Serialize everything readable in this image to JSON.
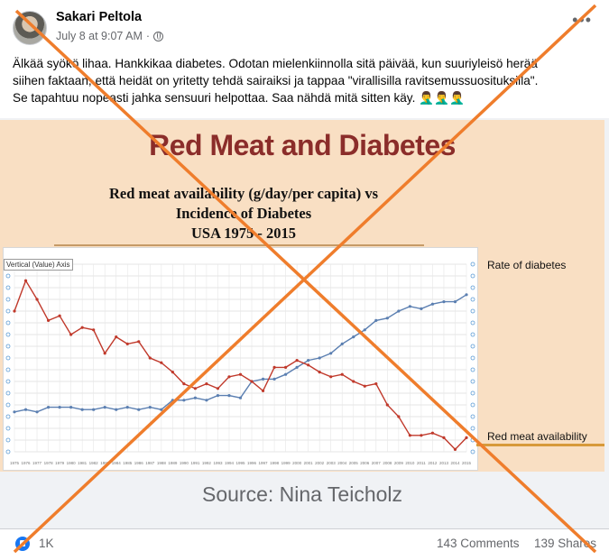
{
  "post": {
    "author": "Sakari Peltola",
    "timestamp": "July 8 at 9:07 AM",
    "separator": "·",
    "more_icon": "more-options-icon",
    "text_lines": [
      "Älkää syökö lihaa. Hankkikaa diabetes. Odotan mielenkiinnolla sitä päivää, kun suuriyleisö herää",
      "siihen faktaan, että heidät on yritetty tehdä sairaiksi ja tappaa \"virallisilla ravitsemussuosituksilla\".",
      "Se tapahtuu nopeasti jahka sensuuri helpottaa. Saa nähdä mitä sitten käy. 🤦‍♂️🤦‍♂️🤦‍♂️"
    ]
  },
  "slide": {
    "title": "Red Meat and Diabetes",
    "heading_lines": [
      "Red meat availability (g/day/per capita) vs",
      "Incidence of Diabetes",
      "USA 1975 - 2015"
    ],
    "axis_tooltip": "Vertical (Value) Axis",
    "source": "Source: Nina Teicholz"
  },
  "chart_data": {
    "type": "line",
    "title": "Red meat availability (g/day/per capita) vs Incidence of Diabetes USA 1975 - 2015",
    "x": [
      1975,
      1976,
      1977,
      1978,
      1979,
      1980,
      1981,
      1982,
      1983,
      1984,
      1985,
      1986,
      1987,
      1988,
      1989,
      1990,
      1991,
      1992,
      1993,
      1994,
      1995,
      1996,
      1997,
      1998,
      1999,
      2000,
      2001,
      2002,
      2003,
      2004,
      2005,
      2006,
      2007,
      2008,
      2009,
      2010,
      2011,
      2012,
      2013,
      2014,
      2015
    ],
    "series": [
      {
        "name": "Rate of diabetes",
        "color": "#5b7fb1",
        "values": [
          17,
          18,
          17,
          19,
          19,
          19,
          18,
          18,
          19,
          18,
          19,
          18,
          19,
          18,
          22,
          22,
          23,
          22,
          24,
          24,
          23,
          30,
          31,
          31,
          33,
          36,
          39,
          40,
          42,
          46,
          49,
          52,
          56,
          57,
          60,
          62,
          61,
          63,
          64,
          64,
          67
        ]
      },
      {
        "name": "Red meat availability",
        "color": "#c0392b",
        "values": [
          60,
          73,
          65,
          56,
          58,
          50,
          53,
          52,
          42,
          49,
          46,
          47,
          40,
          38,
          34,
          29,
          27,
          29,
          27,
          32,
          33,
          30,
          26,
          36,
          36,
          39,
          37,
          34,
          32,
          33,
          30,
          28,
          29,
          20,
          15,
          7,
          7,
          8,
          6,
          1,
          6
        ]
      }
    ],
    "ylim": [
      0,
      80
    ],
    "xlim": [
      1975,
      2015
    ],
    "grid": true
  },
  "footer": {
    "reactions": "1K",
    "comments": "143 Comments",
    "shares": "139 Shares"
  },
  "colors": {
    "slide_background": "#f9dfc3",
    "slide_title": "#8b2d2a",
    "cross": "#ef7d2c",
    "facebook_blue": "#1877f2"
  }
}
